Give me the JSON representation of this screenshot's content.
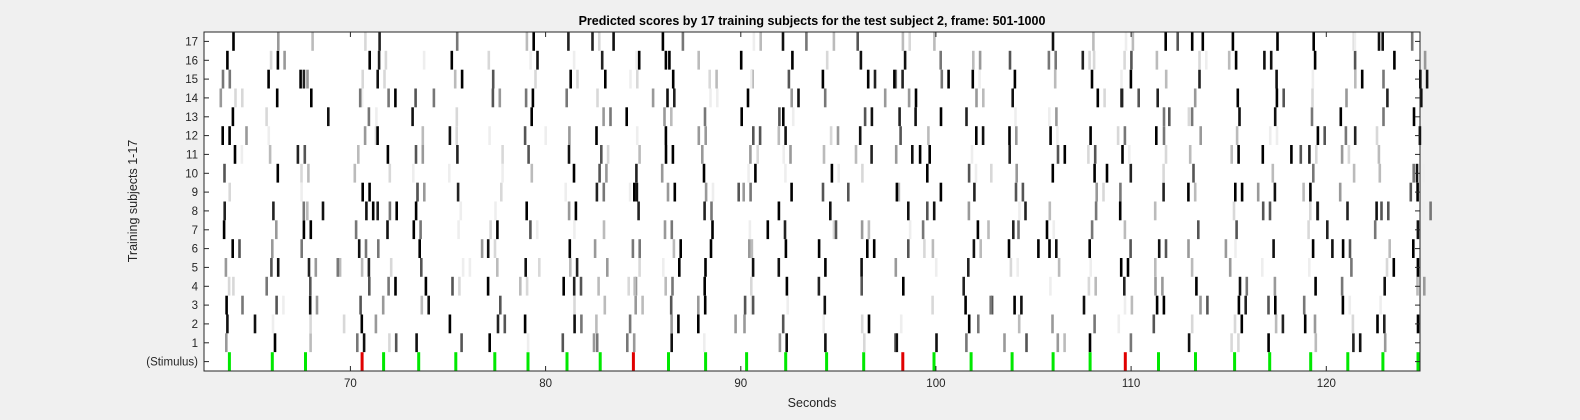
{
  "chart_data": {
    "type": "heatmap",
    "title": "Predicted scores by 17 training subjects for the test subject 2, frame: 501-1000",
    "xlabel": "Seconds",
    "ylabel": "Training subjects 1-17",
    "xlim": [
      62.5,
      124.8
    ],
    "x_ticks": [
      70,
      80,
      90,
      100,
      110,
      120
    ],
    "y_tick_labels": [
      "(Stimulus)",
      "1",
      "2",
      "3",
      "4",
      "5",
      "6",
      "7",
      "8",
      "9",
      "10",
      "11",
      "12",
      "13",
      "14",
      "15",
      "16",
      "17"
    ],
    "grid": false,
    "stimulus_row": {
      "green_times": [
        63.8,
        66.0,
        67.7,
        71.7,
        73.5,
        75.4,
        77.4,
        79.1,
        81.1,
        82.8,
        86.3,
        88.2,
        90.3,
        92.3,
        94.4,
        96.3,
        99.9,
        101.8,
        103.9,
        106.0,
        107.9,
        111.4,
        113.3,
        115.3,
        117.1,
        119.2,
        121.1,
        122.9,
        124.7
      ],
      "red_times": [
        70.6,
        84.5,
        98.3,
        109.7
      ],
      "green_color": "#00e800",
      "red_color": "#e00000"
    },
    "score_colormap": "gray (white = 0, black = 1)"
  }
}
